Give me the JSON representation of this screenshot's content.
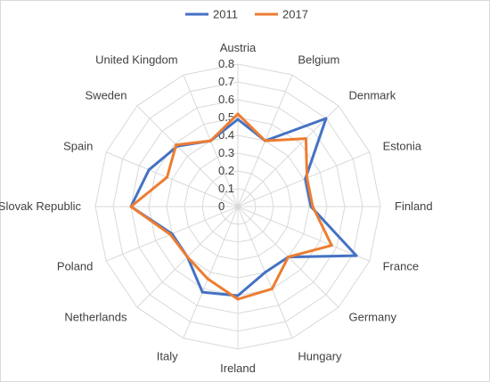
{
  "chart_data": {
    "type": "radar",
    "categories": [
      "Austria",
      "Belgium",
      "Denmark",
      "Estonia",
      "Finland",
      "France",
      "Germany",
      "Hungary",
      "Ireland",
      "Italy",
      "Netherlands",
      "Poland",
      "Slovak Republic",
      "Spain",
      "Sweden",
      "United Kingdom"
    ],
    "series": [
      {
        "name": "2011",
        "color": "#4472c4",
        "values": [
          0.49,
          0.4,
          0.7,
          0.41,
          0.41,
          0.72,
          0.4,
          0.4,
          0.5,
          0.52,
          0.4,
          0.4,
          0.6,
          0.54,
          0.48,
          0.4
        ]
      },
      {
        "name": "2017",
        "color": "#ed7d31",
        "values": [
          0.52,
          0.4,
          0.54,
          0.42,
          0.42,
          0.57,
          0.4,
          0.5,
          0.52,
          0.44,
          0.4,
          0.41,
          0.6,
          0.43,
          0.49,
          0.4
        ]
      }
    ],
    "ticks": [
      "0",
      "0.1",
      "0.2",
      "0.3",
      "0.4",
      "0.5",
      "0.6",
      "0.7",
      "0.8"
    ],
    "rmax": 0.8,
    "grid": true,
    "legend_position": "top"
  }
}
